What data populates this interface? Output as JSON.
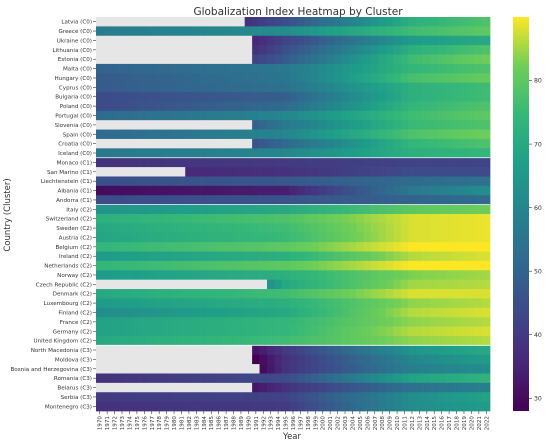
{
  "chart_data": {
    "type": "heatmap",
    "title": "Globalization Index Heatmap by Cluster",
    "xlabel": "Year",
    "ylabel": "Country (Cluster)",
    "colormap": "viridis",
    "missing_color": "#e6e6e6",
    "vmin": 28,
    "vmax": 90,
    "colorbar_ticks": [
      30,
      40,
      50,
      60,
      70,
      80
    ],
    "x": [
      "1970",
      "1971",
      "1972",
      "1973",
      "1974",
      "1975",
      "1976",
      "1977",
      "1978",
      "1979",
      "1980",
      "1981",
      "1982",
      "1983",
      "1984",
      "1985",
      "1986",
      "1987",
      "1988",
      "1989",
      "1990",
      "1991",
      "1992",
      "1993",
      "1994",
      "1995",
      "1996",
      "1997",
      "1998",
      "1999",
      "2000",
      "2001",
      "2002",
      "2003",
      "2004",
      "2005",
      "2006",
      "2007",
      "2008",
      "2009",
      "2010",
      "2011",
      "2012",
      "2013",
      "2014",
      "2015",
      "2016",
      "2017",
      "2018",
      "2019",
      "2020",
      "2021",
      "2022"
    ],
    "rows": [
      {
        "label": "Latvia (C0)",
        "start": 1990,
        "a": 38,
        "b": 45,
        "c": 72,
        "d": 78
      },
      {
        "label": "Greece (C0)",
        "start": 1970,
        "a": 57,
        "b": 62,
        "c": 76,
        "d": 80
      },
      {
        "label": "Ukraine (C0)",
        "start": 1991,
        "a": 36,
        "b": 42,
        "c": 66,
        "d": 70
      },
      {
        "label": "Lithuania (C0)",
        "start": 1991,
        "a": 38,
        "b": 45,
        "c": 72,
        "d": 78
      },
      {
        "label": "Estonia (C0)",
        "start": 1991,
        "a": 42,
        "b": 48,
        "c": 76,
        "d": 82
      },
      {
        "label": "Malta (C0)",
        "start": 1970,
        "a": 50,
        "b": 56,
        "c": 74,
        "d": 78
      },
      {
        "label": "Hungary (C0)",
        "start": 1970,
        "a": 48,
        "b": 55,
        "c": 77,
        "d": 81
      },
      {
        "label": "Cyprus (C0)",
        "start": 1970,
        "a": 48,
        "b": 54,
        "c": 72,
        "d": 76
      },
      {
        "label": "Bulgaria (C0)",
        "start": 1970,
        "a": 44,
        "b": 49,
        "c": 72,
        "d": 76
      },
      {
        "label": "Poland (C0)",
        "start": 1970,
        "a": 44,
        "b": 52,
        "c": 74,
        "d": 78
      },
      {
        "label": "Portugal (C0)",
        "start": 1970,
        "a": 52,
        "b": 60,
        "c": 76,
        "d": 80
      },
      {
        "label": "Slovenia (C0)",
        "start": 1991,
        "a": 50,
        "b": 56,
        "c": 75,
        "d": 78
      },
      {
        "label": "Spain (C0)",
        "start": 1970,
        "a": 52,
        "b": 60,
        "c": 78,
        "d": 82
      },
      {
        "label": "Croatia (C0)",
        "start": 1991,
        "a": 46,
        "b": 52,
        "c": 74,
        "d": 78
      },
      {
        "label": "Iceland (C0)",
        "start": 1970,
        "a": 56,
        "b": 60,
        "c": 72,
        "d": 74
      },
      {
        "label": "Monaco (C1)",
        "start": 1970,
        "a": 38,
        "b": 40,
        "c": 42,
        "d": 42
      },
      {
        "label": "San Marino (C1)",
        "start": 1982,
        "a": 36,
        "b": 38,
        "c": 44,
        "d": 44
      },
      {
        "label": "Liechtenstein (C1)",
        "start": 1970,
        "a": 45,
        "b": 47,
        "c": 52,
        "d": 54
      },
      {
        "label": "Albania (C1)",
        "start": 1970,
        "a": 30,
        "b": 34,
        "c": 56,
        "d": 62
      },
      {
        "label": "Andorra (C1)",
        "start": 1970,
        "a": 44,
        "b": 46,
        "c": 50,
        "d": 52
      },
      {
        "label": "Italy (C2)",
        "start": 1970,
        "a": 64,
        "b": 70,
        "c": 80,
        "d": 82
      },
      {
        "label": "Switzerland (C2)",
        "start": 1970,
        "a": 72,
        "b": 78,
        "c": 88,
        "d": 89
      },
      {
        "label": "Sweden (C2)",
        "start": 1970,
        "a": 70,
        "b": 76,
        "c": 88,
        "d": 89
      },
      {
        "label": "Austria (C2)",
        "start": 1970,
        "a": 69,
        "b": 75,
        "c": 88,
        "d": 89
      },
      {
        "label": "Belgium (C2)",
        "start": 1970,
        "a": 74,
        "b": 80,
        "c": 90,
        "d": 90
      },
      {
        "label": "Ireland (C2)",
        "start": 1970,
        "a": 66,
        "b": 72,
        "c": 86,
        "d": 88
      },
      {
        "label": "Netherlands (C2)",
        "start": 1970,
        "a": 74,
        "b": 80,
        "c": 90,
        "d": 90
      },
      {
        "label": "Norway (C2)",
        "start": 1970,
        "a": 66,
        "b": 72,
        "c": 83,
        "d": 85
      },
      {
        "label": "Czech Republic (C2)",
        "start": 1993,
        "a": 64,
        "b": 70,
        "c": 85,
        "d": 86
      },
      {
        "label": "Denmark (C2)",
        "start": 1970,
        "a": 70,
        "b": 76,
        "c": 88,
        "d": 88
      },
      {
        "label": "Luxembourg (C2)",
        "start": 1970,
        "a": 66,
        "b": 72,
        "c": 84,
        "d": 86
      },
      {
        "label": "Finland (C2)",
        "start": 1970,
        "a": 62,
        "b": 70,
        "c": 86,
        "d": 88
      },
      {
        "label": "France (C2)",
        "start": 1970,
        "a": 68,
        "b": 74,
        "c": 84,
        "d": 86
      },
      {
        "label": "Germany (C2)",
        "start": 1970,
        "a": 68,
        "b": 74,
        "c": 86,
        "d": 88
      },
      {
        "label": "United Kingdom (C2)",
        "start": 1970,
        "a": 70,
        "b": 76,
        "c": 84,
        "d": 86
      },
      {
        "label": "North Macedonia (C3)",
        "start": 1991,
        "a": 32,
        "b": 40,
        "c": 64,
        "d": 70
      },
      {
        "label": "Moldova (C3)",
        "start": 1991,
        "a": 28,
        "b": 38,
        "c": 60,
        "d": 66
      },
      {
        "label": "Bosnia and Herzegovina (C3)",
        "start": 1992,
        "a": 30,
        "b": 38,
        "c": 58,
        "d": 62
      },
      {
        "label": "Romania (C3)",
        "start": 1970,
        "a": 38,
        "b": 44,
        "c": 68,
        "d": 73
      },
      {
        "label": "Belarus (C3)",
        "start": 1991,
        "a": 32,
        "b": 38,
        "c": 54,
        "d": 58
      },
      {
        "label": "Serbia (C3)",
        "start": 1970,
        "a": 40,
        "b": 42,
        "c": 62,
        "d": 68
      },
      {
        "label": "Montenegro (C3)",
        "start": 1970,
        "a": 38,
        "b": 40,
        "c": 62,
        "d": 66
      }
    ]
  }
}
